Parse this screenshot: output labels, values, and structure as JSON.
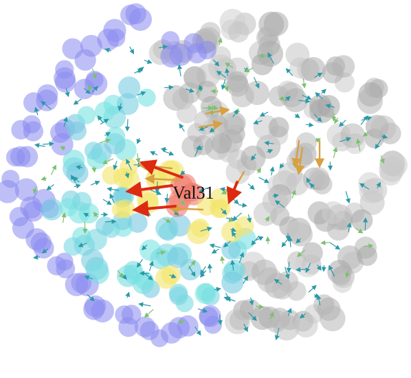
{
  "figure": {
    "residue_label": "Val31"
  },
  "colors": {
    "background": "#ffffff",
    "gray_domain": "#b8b8b8",
    "blue_domain": "#8a8af0",
    "cyan_domain": "#7fe0e4",
    "yellow_region": "#f3e56a",
    "red_region": "#f07a6a",
    "arrow_strong": "#dd2a10",
    "arrow_medium": "#d8a040",
    "arrow_weak": "#2a9aa8"
  }
}
